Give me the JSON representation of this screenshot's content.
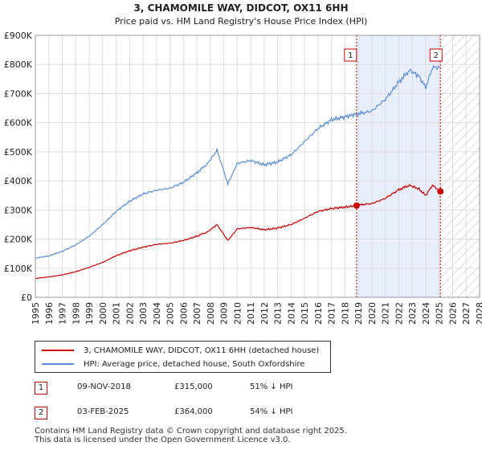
{
  "chart_data": {
    "type": "line",
    "title": "3, CHAMOMILE WAY, DIDCOT, OX11 6HH",
    "subtitle": "Price paid vs. HM Land Registry's House Price Index (HPI)",
    "xlabel": "",
    "ylabel": "",
    "xlim": [
      1995,
      2028
    ],
    "ylim": [
      0,
      900000
    ],
    "y_ticks": [
      0,
      100000,
      200000,
      300000,
      400000,
      500000,
      600000,
      700000,
      800000,
      900000
    ],
    "y_tick_labels": [
      "£0",
      "£100K",
      "£200K",
      "£300K",
      "£400K",
      "£500K",
      "£600K",
      "£700K",
      "£800K",
      "£900K"
    ],
    "x_ticks": [
      1995,
      1996,
      1997,
      1998,
      1999,
      2000,
      2001,
      2002,
      2003,
      2004,
      2005,
      2006,
      2007,
      2008,
      2009,
      2010,
      2011,
      2012,
      2013,
      2014,
      2015,
      2016,
      2017,
      2018,
      2019,
      2020,
      2021,
      2022,
      2023,
      2024,
      2025,
      2026,
      2027,
      2028
    ],
    "x_tick_labels": [
      "1995",
      "1996",
      "1997",
      "1998",
      "1999",
      "2000",
      "2001",
      "2002",
      "2003",
      "2004",
      "2005",
      "2006",
      "2007",
      "2008",
      "2009",
      "2010",
      "2011",
      "2012",
      "2013",
      "2014",
      "2015",
      "2016",
      "2017",
      "2018",
      "2019",
      "2020",
      "2021",
      "2022",
      "2023",
      "2024",
      "2025",
      "2026",
      "2027",
      "2028"
    ],
    "grid": true,
    "shaded_period": [
      2018.86,
      2025.09
    ],
    "future_hatch_from": 2025.09,
    "series": [
      {
        "name": "3, CHAMOMILE WAY, DIDCOT, OX11 6HH (detached house)",
        "color": "#cc0000",
        "x": [
          1995,
          1996,
          1997,
          1998,
          1999,
          2000,
          2001,
          2002,
          2003,
          2004,
          2005,
          2006,
          2007,
          2007.8,
          2008.5,
          2009.3,
          2010,
          2011,
          2012,
          2013,
          2014,
          2015,
          2016,
          2017,
          2018,
          2018.86,
          2019.5,
          2020,
          2021,
          2022,
          2022.8,
          2023.5,
          2024,
          2024.5,
          2025.09
        ],
        "y": [
          65000,
          70000,
          77000,
          88000,
          103000,
          120000,
          143000,
          160000,
          172000,
          182000,
          186000,
          195000,
          210000,
          225000,
          250000,
          195000,
          235000,
          240000,
          232000,
          238000,
          250000,
          272000,
          295000,
          305000,
          310000,
          315000,
          320000,
          322000,
          340000,
          370000,
          385000,
          372000,
          350000,
          385000,
          364000
        ]
      },
      {
        "name": "HPI: Average price, detached house, South Oxfordshire",
        "color": "#5b8fd6",
        "x": [
          1995,
          1996,
          1997,
          1998,
          1999,
          2000,
          2001,
          2002,
          2003,
          2004,
          2005,
          2006,
          2007,
          2007.8,
          2008.5,
          2009.3,
          2010,
          2011,
          2012,
          2013,
          2014,
          2015,
          2016,
          2017,
          2018,
          2018.86,
          2019.5,
          2020,
          2021,
          2022,
          2022.8,
          2023.5,
          2024,
          2024.5,
          2025.09
        ],
        "y": [
          135000,
          142000,
          158000,
          180000,
          210000,
          250000,
          295000,
          330000,
          355000,
          368000,
          375000,
          395000,
          428000,
          460000,
          505000,
          390000,
          460000,
          470000,
          455000,
          465000,
          490000,
          535000,
          580000,
          610000,
          620000,
          630000,
          635000,
          640000,
          680000,
          740000,
          780000,
          760000,
          720000,
          790000,
          790000
        ]
      }
    ],
    "transactions": [
      {
        "num": "1",
        "x": 2018.86,
        "y": 315000,
        "date": "09-NOV-2018",
        "price": "£315,000",
        "hpi": "51% ↓ HPI"
      },
      {
        "num": "2",
        "x": 2025.09,
        "y": 364000,
        "date": "03-FEB-2025",
        "price": "£364,000",
        "hpi": "54% ↓ HPI"
      }
    ]
  },
  "legend": {
    "property_label": "3, CHAMOMILE WAY, DIDCOT, OX11 6HH (detached house)",
    "hpi_label": "HPI: Average price, detached house, South Oxfordshire"
  },
  "footer": {
    "line1": "Contains HM Land Registry data © Crown copyright and database right 2025.",
    "line2": "This data is licensed under the Open Government Licence v3.0."
  }
}
